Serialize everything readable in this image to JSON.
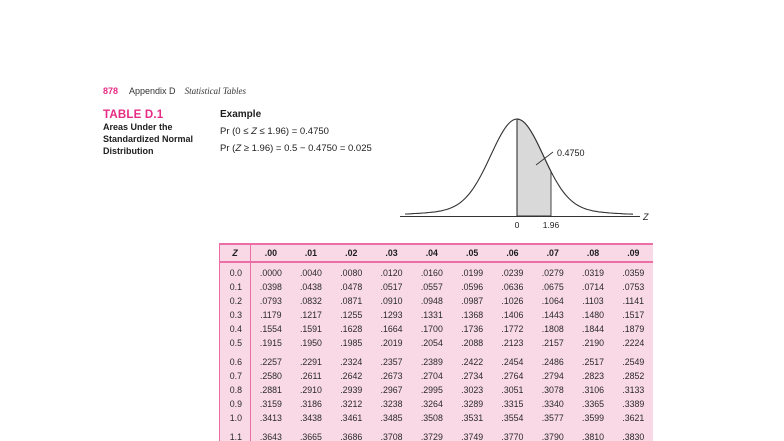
{
  "page_header": {
    "page_number": "878",
    "section": "Appendix D",
    "section_title": "Statistical Tables"
  },
  "table_block": {
    "label": "TABLE D.1",
    "title_lines": [
      "Areas Under the",
      "Standardized Normal",
      "Distribution"
    ]
  },
  "example": {
    "heading": "Example",
    "line1_parts": [
      "Pr (0 ≤ ",
      "Z",
      " ≤ 1.96) = 0.4750"
    ],
    "line2_parts": [
      "Pr (",
      "Z",
      " ≥ 1.96) = 0.5 − 0.4750 = 0.025"
    ]
  },
  "diagram": {
    "area_label": "0.4750",
    "tick_zero": "0",
    "tick_196": "1.96",
    "axis_label": "Z",
    "shade_color": "#d9d9d9",
    "line_color": "#333333"
  },
  "colors": {
    "accent_pink": "#e72a84",
    "table_border_pink": "#ec6ea6",
    "table_background_pink": "#f9d9e5"
  },
  "table": {
    "header": [
      "Z",
      ".00",
      ".01",
      ".02",
      ".03",
      ".04",
      ".05",
      ".06",
      ".07",
      ".08",
      ".09"
    ],
    "row_groups": [
      [
        {
          "z": "0.0",
          "values": [
            ".0000",
            ".0040",
            ".0080",
            ".0120",
            ".0160",
            ".0199",
            ".0239",
            ".0279",
            ".0319",
            ".0359"
          ]
        },
        {
          "z": "0.1",
          "values": [
            ".0398",
            ".0438",
            ".0478",
            ".0517",
            ".0557",
            ".0596",
            ".0636",
            ".0675",
            ".0714",
            ".0753"
          ]
        },
        {
          "z": "0.2",
          "values": [
            ".0793",
            ".0832",
            ".0871",
            ".0910",
            ".0948",
            ".0987",
            ".1026",
            ".1064",
            ".1103",
            ".1141"
          ]
        },
        {
          "z": "0.3",
          "values": [
            ".1179",
            ".1217",
            ".1255",
            ".1293",
            ".1331",
            ".1368",
            ".1406",
            ".1443",
            ".1480",
            ".1517"
          ]
        },
        {
          "z": "0.4",
          "values": [
            ".1554",
            ".1591",
            ".1628",
            ".1664",
            ".1700",
            ".1736",
            ".1772",
            ".1808",
            ".1844",
            ".1879"
          ]
        },
        {
          "z": "0.5",
          "values": [
            ".1915",
            ".1950",
            ".1985",
            ".2019",
            ".2054",
            ".2088",
            ".2123",
            ".2157",
            ".2190",
            ".2224"
          ]
        }
      ],
      [
        {
          "z": "0.6",
          "values": [
            ".2257",
            ".2291",
            ".2324",
            ".2357",
            ".2389",
            ".2422",
            ".2454",
            ".2486",
            ".2517",
            ".2549"
          ]
        },
        {
          "z": "0.7",
          "values": [
            ".2580",
            ".2611",
            ".2642",
            ".2673",
            ".2704",
            ".2734",
            ".2764",
            ".2794",
            ".2823",
            ".2852"
          ]
        },
        {
          "z": "0.8",
          "values": [
            ".2881",
            ".2910",
            ".2939",
            ".2967",
            ".2995",
            ".3023",
            ".3051",
            ".3078",
            ".3106",
            ".3133"
          ]
        },
        {
          "z": "0.9",
          "values": [
            ".3159",
            ".3186",
            ".3212",
            ".3238",
            ".3264",
            ".3289",
            ".3315",
            ".3340",
            ".3365",
            ".3389"
          ]
        },
        {
          "z": "1.0",
          "values": [
            ".3413",
            ".3438",
            ".3461",
            ".3485",
            ".3508",
            ".3531",
            ".3554",
            ".3577",
            ".3599",
            ".3621"
          ]
        }
      ],
      [
        {
          "z": "1.1",
          "values": [
            ".3643",
            ".3665",
            ".3686",
            ".3708",
            ".3729",
            ".3749",
            ".3770",
            ".3790",
            ".3810",
            ".3830"
          ]
        }
      ]
    ]
  }
}
